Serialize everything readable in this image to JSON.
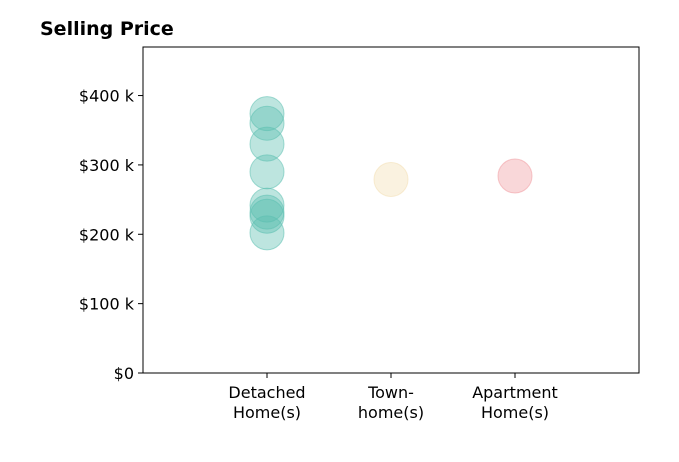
{
  "chart_data": {
    "type": "scatter",
    "title": "Selling Price",
    "xlabel": "",
    "ylabel": "",
    "categories": [
      [
        "Detached",
        "Home(s)"
      ],
      [
        "Town-",
        "home(s)"
      ],
      [
        "Apartment",
        "Home(s)"
      ]
    ],
    "y_ticks": [
      {
        "value": 0,
        "label": "$0"
      },
      {
        "value": 100000,
        "label": "$100 k"
      },
      {
        "value": 200000,
        "label": "$200 k"
      },
      {
        "value": 300000,
        "label": "$300 k"
      },
      {
        "value": 400000,
        "label": "$400 k"
      }
    ],
    "ylim": [
      0,
      470000
    ],
    "xlim": [
      -1,
      3
    ],
    "grid": false,
    "series": [
      {
        "category_index": 0,
        "color": "#5bbfb0",
        "values": [
          374000,
          360000,
          330000,
          290000,
          242000,
          232000,
          226000,
          202000
        ]
      },
      {
        "category_index": 1,
        "color": "#f3deb2",
        "values": [
          279000
        ]
      },
      {
        "category_index": 2,
        "color": "#f19aa1",
        "values": [
          284000
        ]
      }
    ]
  }
}
